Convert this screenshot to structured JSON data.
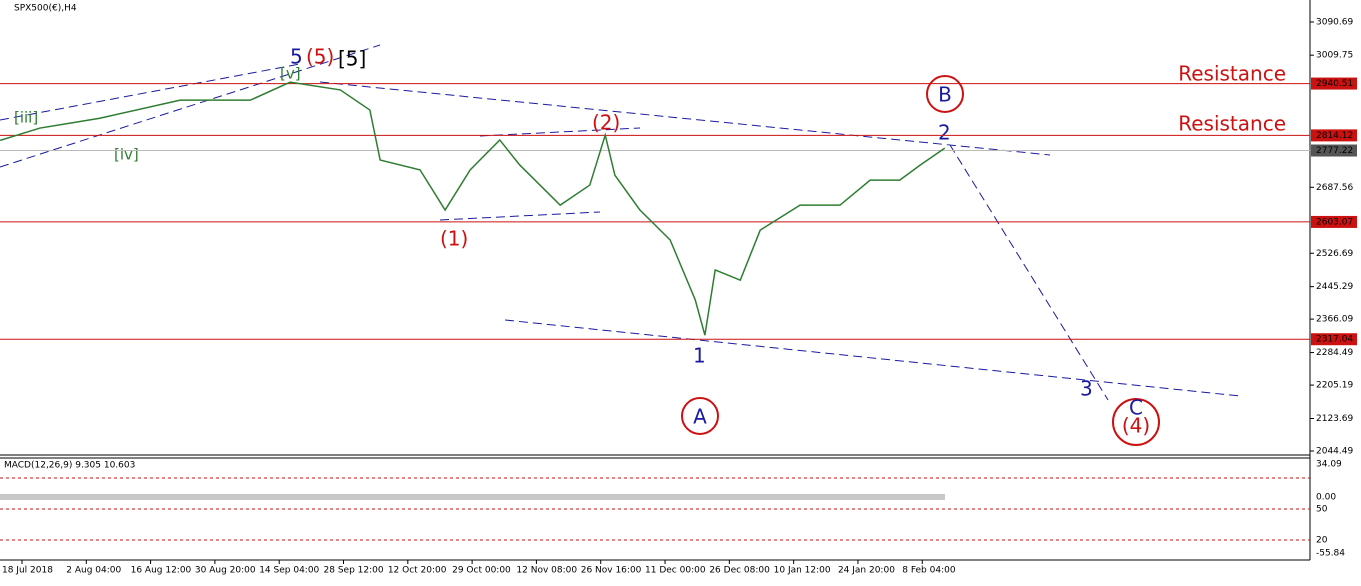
{
  "chart_data": {
    "type": "line",
    "title": "SPX500(€),H4",
    "x": [
      -0.34,
      0.28,
      1.21,
      2.46,
      3.55,
      4.17,
      4.95,
      5.41,
      5.57,
      6.19,
      6.58,
      6.97,
      7.43,
      7.74,
      8.37,
      8.83,
      9.07,
      9.22,
      9.61,
      10.08,
      10.47,
      10.62,
      10.78,
      11.17,
      11.48,
      12.1,
      12.72,
      13.19,
      13.65,
      13.97,
      14.35
    ],
    "series": [
      {
        "color": "#2e7d32",
        "values": [
          2802,
          2832,
          2856,
          2900,
          2900,
          2944,
          2925,
          2876,
          2754,
          2730,
          2632,
          2730,
          2803,
          2742,
          2644,
          2693,
          2815,
          2717,
          2632,
          2559,
          2413,
          2327,
          2486,
          2461,
          2583,
          2644,
          2644,
          2705,
          2705,
          2742,
          2783
        ]
      }
    ],
    "xlim": [
      -0.342,
      20.03
    ],
    "ylim": [
      2034.7,
      3144.3
    ],
    "yticks": [
      3090.69,
      3009.75,
      2687.56,
      2526.69,
      2445.29,
      2366.09,
      2284.49,
      2205.19,
      2123.69,
      2044.49
    ],
    "xticks": [
      {
        "value": 0,
        "label": "18 Jul 2018"
      },
      {
        "value": 1,
        "label": "2 Aug 04:00"
      },
      {
        "value": 2,
        "label": "16 Aug 12:00"
      },
      {
        "value": 3,
        "label": "30 Aug 20:00"
      },
      {
        "value": 4,
        "label": "14 Sep 04:00"
      },
      {
        "value": 5,
        "label": "28 Sep 12:00"
      },
      {
        "value": 6,
        "label": "12 Oct 20:00"
      },
      {
        "value": 7,
        "label": "29 Oct 00:00"
      },
      {
        "value": 8,
        "label": "12 Nov 08:00"
      },
      {
        "value": 9,
        "label": "26 Nov 16:00"
      },
      {
        "value": 10,
        "label": "11 Dec 00:00"
      },
      {
        "value": 11,
        "label": "26 Dec 08:00"
      },
      {
        "value": 12,
        "label": "10 Jan 12:00"
      },
      {
        "value": 13,
        "label": "24 Jan 20:00"
      },
      {
        "value": 14,
        "label": "8 Feb 04:00"
      }
    ],
    "levels": [
      2940.51,
      2814.12,
      2603.07,
      2317.04
    ],
    "level_color": "#cc1111",
    "current_price": 2777.22,
    "resistance_labels": [
      "Resistance",
      "Resistance"
    ],
    "wave_labels": [
      "5",
      "(5)",
      "[5]",
      "[v]",
      "[iii]",
      "[iv]",
      "(1)",
      "(2)",
      "1",
      "2",
      "3",
      "A",
      "B",
      "C",
      "(4)"
    ],
    "macd_title": "MACD(12,26,9) 9.305 10.603",
    "macd_axis_labels": [
      "34.09",
      "0.00",
      "50",
      "20",
      "-55.84"
    ]
  }
}
